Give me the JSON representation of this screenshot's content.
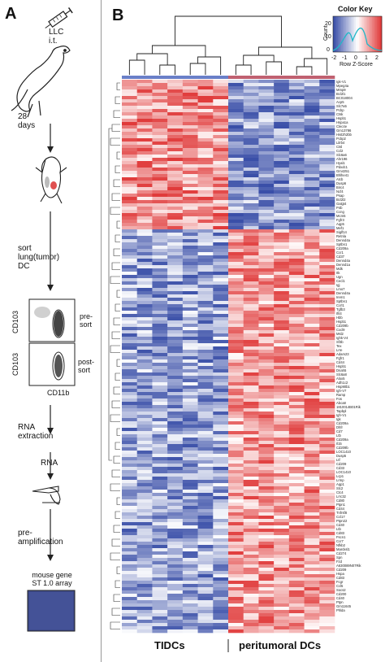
{
  "panels": {
    "a": "A",
    "b": "B"
  },
  "workflow": {
    "injection": "LLC\ni.t.",
    "time": "28\ndays",
    "sort": "sort\nlung(tumor)\nDC",
    "facs_y1": "CD103",
    "facs_y2": "CD103",
    "facs_x": "CD11b",
    "pre_sort": "pre-\nsort",
    "post_sort": "post-\nsort",
    "rna_extraction": "RNA\nextraction",
    "rna": "RNA",
    "preamp": "pre-\namplification",
    "array": "mouse gene\nST 1.0 array"
  },
  "color_key": {
    "title": "Color Key",
    "ylabel": "Count",
    "yticks": [
      "0",
      "10",
      "20"
    ],
    "xticks": [
      "-2",
      "-1",
      "0",
      "1",
      "2"
    ],
    "xlabel": "Row Z-Score",
    "colors": {
      "low": "#3a4fa8",
      "mid": "#ffffff",
      "high": "#e03a3a"
    }
  },
  "groups": {
    "left": "TIDCs",
    "right": "peritumoral DCs"
  },
  "genes": [
    "Igk-V1",
    "Mpeg4a",
    "Mmp9",
    "Bcl2l1",
    "BC018004",
    "Acp5",
    "Slc7a5",
    "Pcbp",
    "Ctsk",
    "Hspb1",
    "Hspa1a",
    "Clec4e",
    "Gm13786",
    "Hist2h2bb",
    "Pcbp2",
    "Lilrb4",
    "Ctsl",
    "Ccl2",
    "Slc6a6",
    "Ahr196",
    "Hyal1",
    "Pdxdc1",
    "Gm4251",
    "Bhlhe41",
    "Atcb",
    "Dusp6",
    "Birc4",
    "Ncf4",
    "Psap",
    "Bcl2l2",
    "Galgt4",
    "P4b",
    "Ccng",
    "Mcm5",
    "Fgfr3",
    "Aqp5",
    "Mef1",
    "Siglf14",
    "Retnla",
    "Dennd4a",
    "Sptbn1",
    "Cd209a",
    "Ccr1",
    "Cd37",
    "Dennd4a",
    "Dennd1a",
    "Mdk",
    "Itk",
    "Ugn",
    "Cecl1",
    "Igj",
    "Lmo7",
    "Dennd4a",
    "Irem1",
    "Sptbn1",
    "Ccrl1",
    "Tgfb3",
    "Ifit4",
    "Hbb",
    "Hspb1",
    "Cd209b",
    "Cxcl9",
    "Msl2",
    "Ighk-V4",
    "Sf3b",
    "Tex",
    "Lrre",
    "Adam23",
    "Fgfr1",
    "Cd44",
    "Hspb1",
    "Dnah5",
    "Slc6a8",
    "Alox5",
    "Adh1c2",
    "Hsp90b1",
    "Igh-V7",
    "Ramp",
    "Fos",
    "Abca8",
    "1810014B01Rik",
    "Tapbpl",
    "Igh-V1",
    "Igk",
    "Cd209a",
    "Dhfr",
    "Cd7",
    "Ltb",
    "Cd209a",
    "Il15",
    "Cd209b",
    "LOC1410",
    "Dusp5",
    "Ltf",
    "Cd209",
    "Cd33",
    "LOC1410",
    "Lcp1",
    "Lrmp",
    "Aqp1",
    "Slc2",
    "Ctc4",
    "Lrrc32",
    "Cd80",
    "Ptpn1",
    "Cd44",
    "Tnfrsf8",
    "Ccl17",
    "Ptpn22",
    "Cd40",
    "Ltb",
    "Cd83",
    "Fscn1",
    "Ccr7",
    "Nfkb2",
    "Marcksl1",
    "Cd274",
    "Spn",
    "Fzd",
    "A630089N07Rik",
    "Cd209",
    "Hspa",
    "Cd83",
    "Fcgr",
    "Ccl5",
    "Socs2",
    "Cd200",
    "Cd40",
    "Ptpn",
    "Gm11645",
    "Phlda"
  ]
}
